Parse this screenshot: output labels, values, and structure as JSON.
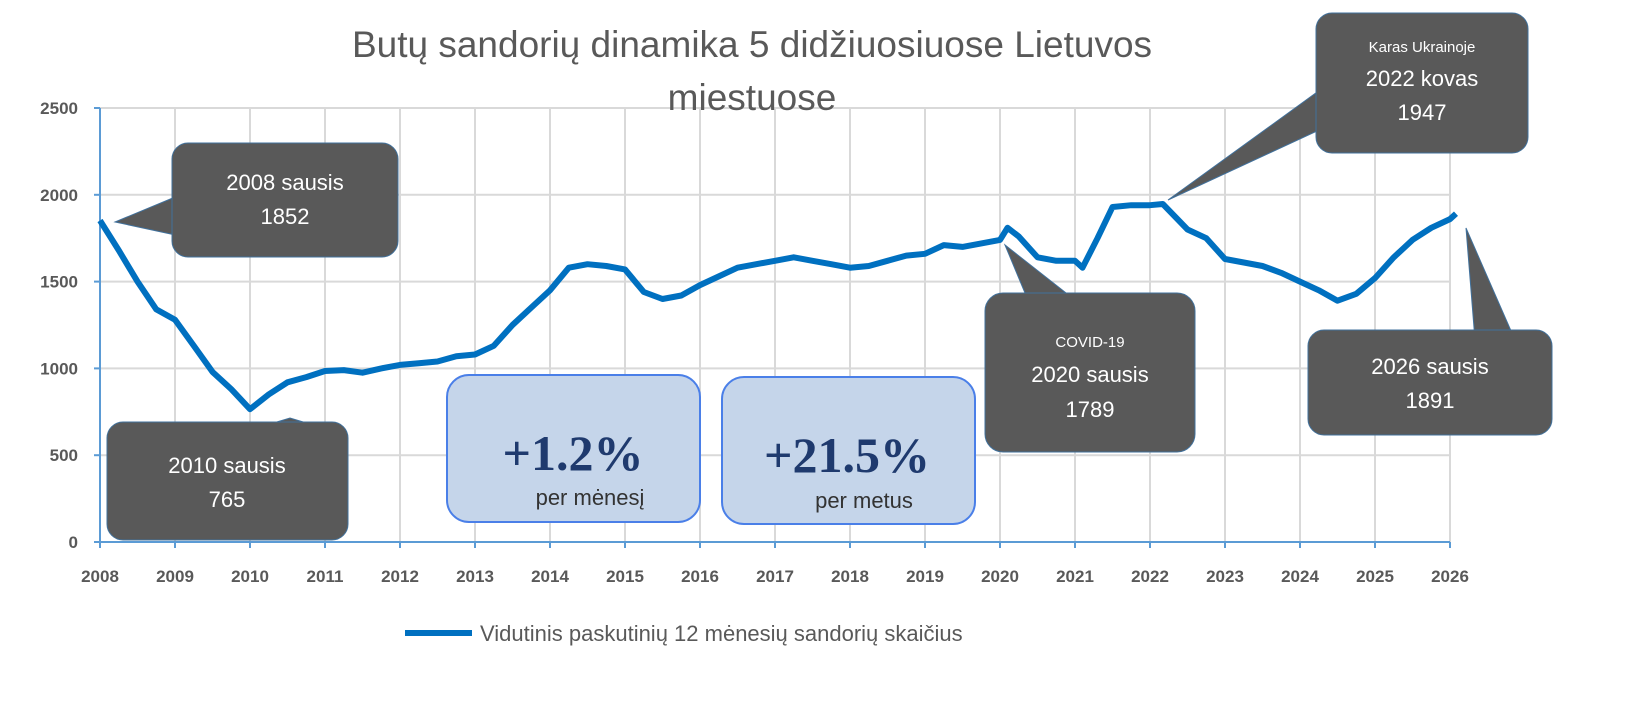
{
  "chart_data": {
    "type": "line",
    "title": "Butų sandorių dinamika 5 didžiuosiuose Lietuvos miestuose",
    "title_lines": [
      "Butų sandorių dinamika 5 didžiuosiuose  Lietuvos",
      "miestuose"
    ],
    "xlabel": "",
    "ylabel": "",
    "xlim": [
      2008,
      2026
    ],
    "ylim": [
      0,
      2500
    ],
    "x_ticks": [
      "2008",
      "2009",
      "2010",
      "2011",
      "2012",
      "2013",
      "2014",
      "2015",
      "2016",
      "2017",
      "2018",
      "2019",
      "2020",
      "2021",
      "2022",
      "2023",
      "2024",
      "2025",
      "2026"
    ],
    "y_ticks": [
      "0",
      "500",
      "1000",
      "1500",
      "2000",
      "2500"
    ],
    "grid": true,
    "legend_position": "bottom",
    "series": [
      {
        "name": "Vidutinis paskutinių 12 mėnesių sandorių skaičius",
        "color": "#0070c0",
        "x": [
          2008,
          2008.25,
          2008.5,
          2008.75,
          2009,
          2009.25,
          2009.5,
          2009.75,
          2010,
          2010.25,
          2010.5,
          2010.75,
          2011,
          2011.25,
          2011.5,
          2011.75,
          2012,
          2012.25,
          2012.5,
          2012.75,
          2013,
          2013.25,
          2013.5,
          2013.75,
          2014,
          2014.25,
          2014.5,
          2014.75,
          2015,
          2015.25,
          2015.5,
          2015.75,
          2016,
          2016.25,
          2016.5,
          2016.75,
          2017,
          2017.25,
          2017.5,
          2017.75,
          2018,
          2018.25,
          2018.5,
          2018.75,
          2019,
          2019.25,
          2019.5,
          2019.75,
          2020,
          2020.1,
          2020.25,
          2020.5,
          2020.75,
          2021,
          2021.1,
          2021.3,
          2021.5,
          2021.75,
          2022,
          2022.17,
          2022.5,
          2022.75,
          2023,
          2023.25,
          2023.5,
          2023.75,
          2024,
          2024.25,
          2024.5,
          2024.75,
          2025,
          2025.25,
          2025.5,
          2025.75,
          2026,
          2026.08
        ],
        "values": [
          1852,
          1680,
          1500,
          1340,
          1280,
          1130,
          980,
          880,
          765,
          850,
          920,
          950,
          985,
          990,
          975,
          1000,
          1020,
          1030,
          1040,
          1070,
          1080,
          1130,
          1250,
          1350,
          1450,
          1580,
          1600,
          1590,
          1570,
          1440,
          1400,
          1420,
          1480,
          1530,
          1580,
          1600,
          1620,
          1640,
          1620,
          1600,
          1580,
          1590,
          1620,
          1650,
          1660,
          1710,
          1700,
          1720,
          1740,
          1810,
          1760,
          1640,
          1620,
          1620,
          1580,
          1750,
          1930,
          1940,
          1940,
          1947,
          1800,
          1750,
          1630,
          1610,
          1590,
          1550,
          1500,
          1450,
          1390,
          1430,
          1520,
          1640,
          1740,
          1810,
          1860,
          1891
        ]
      }
    ],
    "annotations": [
      {
        "lines": [
          "2008 sausis",
          "1852"
        ]
      },
      {
        "lines": [
          "2010 sausis",
          "765"
        ]
      },
      {
        "small": "COVID-19",
        "lines": [
          "2020 sausis",
          "1789"
        ]
      },
      {
        "small": "Karas Ukrainoje",
        "lines": [
          "2022 kovas",
          "1947"
        ]
      },
      {
        "lines": [
          "2026 sausis",
          "1891"
        ]
      }
    ],
    "stat_boxes": [
      {
        "value": "+1.2%",
        "label": "per mėnesį"
      },
      {
        "value": "+21.5%",
        "label": "per metus"
      }
    ]
  }
}
